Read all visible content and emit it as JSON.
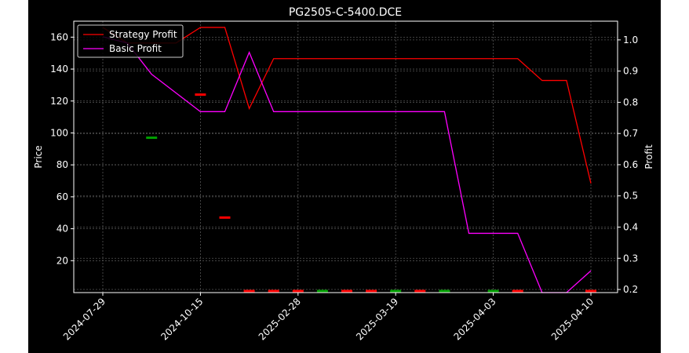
{
  "chart_data": {
    "type": "line",
    "title": "PG2505-C-5400.DCE",
    "xlabel": "",
    "ylabel_left": "Price",
    "ylabel_right": "Profit",
    "x_tick_labels": [
      "2024-07-29",
      "2024-10-15",
      "2025-02-28",
      "2025-03-19",
      "2025-04-03",
      "2025-04-10"
    ],
    "y_left_ticks": [
      20,
      40,
      60,
      80,
      100,
      120,
      140,
      160
    ],
    "y_left_lim": [
      0,
      170
    ],
    "y_right_ticks": [
      0.2,
      0.3,
      0.4,
      0.5,
      0.6,
      0.7,
      0.8,
      0.9,
      1.0
    ],
    "y_right_lim": [
      0.19,
      1.06
    ],
    "grid": true,
    "legend_position": "upper-left",
    "colors": {
      "background": "#000000",
      "axes": "#ffffff",
      "grid": "#555555",
      "strategy": "#ff0000",
      "basic": "#ff00ff",
      "candle_up": "#00a000",
      "candle_down": "#ff0000"
    },
    "x_index": [
      0,
      1,
      2,
      3,
      4,
      5,
      6,
      7,
      8,
      9,
      10,
      11,
      12,
      13,
      14,
      15,
      16,
      17,
      18,
      19,
      20
    ],
    "series": [
      {
        "name": "Strategy Profit",
        "axis": "right",
        "values": [
          1.04,
          0.99,
          0.99,
          0.99,
          1.04,
          1.04,
          0.78,
          0.94,
          0.94,
          0.94,
          0.94,
          0.94,
          0.94,
          0.94,
          0.94,
          0.94,
          0.94,
          0.94,
          0.87,
          0.87,
          0.54
        ]
      },
      {
        "name": "Basic Profit",
        "axis": "right",
        "values": [
          1.01,
          0.99,
          0.89,
          0.83,
          0.77,
          0.77,
          0.96,
          0.77,
          0.77,
          0.77,
          0.77,
          0.77,
          0.77,
          0.77,
          0.77,
          0.38,
          0.38,
          0.38,
          0.19,
          0.19,
          0.26
        ]
      }
    ],
    "price_ticks": [
      {
        "x": 2,
        "y": 97,
        "dir": "up"
      },
      {
        "x": 4,
        "y": 124,
        "dir": "down"
      },
      {
        "x": 5,
        "y": 47,
        "dir": "down"
      },
      {
        "x": 6,
        "y": 1,
        "dir": "down"
      },
      {
        "x": 7,
        "y": 1,
        "dir": "down"
      },
      {
        "x": 8,
        "y": 1,
        "dir": "down"
      },
      {
        "x": 9,
        "y": 1,
        "dir": "up"
      },
      {
        "x": 10,
        "y": 1,
        "dir": "down"
      },
      {
        "x": 11,
        "y": 1,
        "dir": "down"
      },
      {
        "x": 12,
        "y": 1,
        "dir": "up"
      },
      {
        "x": 13,
        "y": 1,
        "dir": "down"
      },
      {
        "x": 14,
        "y": 1,
        "dir": "up"
      },
      {
        "x": 16,
        "y": 1,
        "dir": "up"
      },
      {
        "x": 17,
        "y": 1,
        "dir": "down"
      },
      {
        "x": 20,
        "y": 1,
        "dir": "down"
      }
    ]
  }
}
